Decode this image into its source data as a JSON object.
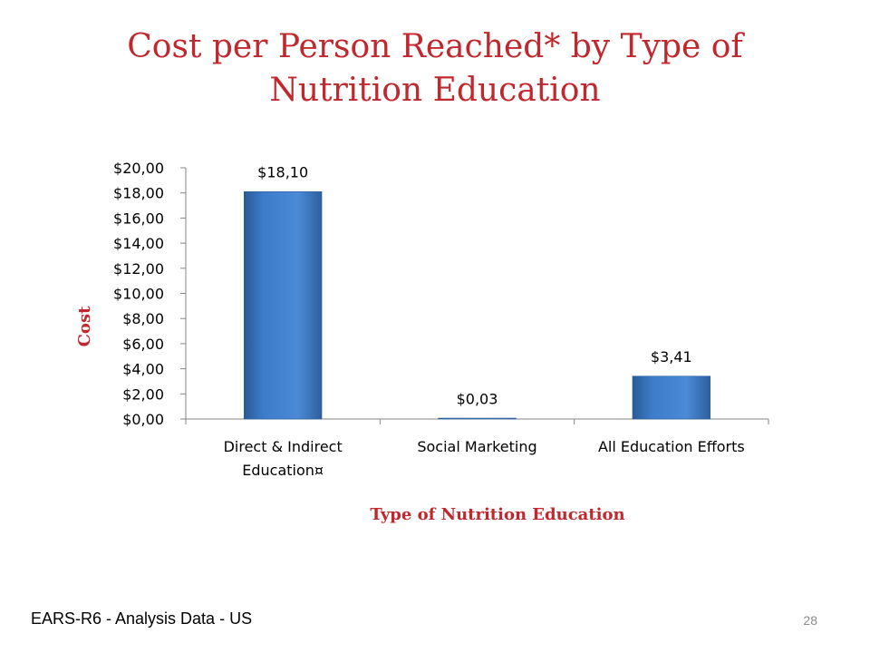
{
  "slide": {
    "title": "Cost per Person Reached* by Type of Nutrition Education",
    "footer": "EARS-R6 - Analysis Data - US",
    "page_number": "28"
  },
  "chart_data": {
    "type": "bar",
    "title": "",
    "categories": [
      "Direct & Indirect Education¤",
      "Social Marketing",
      "All Education Efforts"
    ],
    "category_lines": [
      [
        "Direct & Indirect",
        "Education¤"
      ],
      [
        "Social Marketing"
      ],
      [
        "All Education Efforts"
      ]
    ],
    "values": [
      18.1,
      0.03,
      3.41
    ],
    "data_labels": [
      "$18,10",
      "$0,03",
      "$3,41"
    ],
    "xlabel": "Type of Nutrition Education",
    "ylabel": "Cost",
    "ylim": [
      0,
      20
    ],
    "y_ticks": [
      0,
      2,
      4,
      6,
      8,
      10,
      12,
      14,
      16,
      18,
      20
    ],
    "y_tick_labels": [
      "$0,00",
      "$2,00",
      "$4,00",
      "$6,00",
      "$8,00",
      "$10,00",
      "$12,00",
      "$14,00",
      "$16,00",
      "$18,00",
      "$20,00"
    ],
    "grid": false,
    "legend": "none",
    "colors": {
      "bar": "#3c7cc8",
      "bar_dark": "#2d5f9e",
      "axis_title": "#c0282d",
      "axis_line": "#868686",
      "text": "#000000"
    }
  }
}
